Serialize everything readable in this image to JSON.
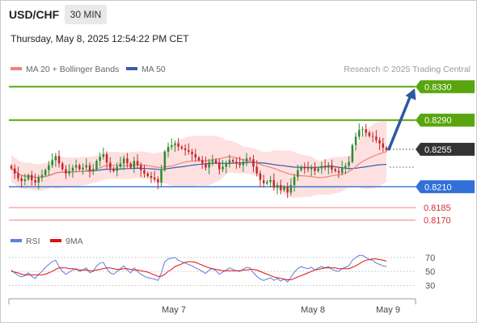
{
  "header": {
    "symbol": "USD/CHF",
    "timeframe": "30 MIN",
    "datetime": "Thursday, May 8, 2025 12:54:22 PM CET"
  },
  "legend": {
    "ma20_label": "MA 20 + Bollinger Bands",
    "ma50_label": "MA 50",
    "credit": "Research © 2025 Trading Central",
    "rsi_label": "RSI",
    "ma9_label": "9MA"
  },
  "colors": {
    "up": "#2e8b2e",
    "down": "#c62828",
    "ma20": "#f08080",
    "ma50": "#3a5ea8",
    "band": "#fde0e0",
    "resistance": "#5aa50f",
    "support": "#3070d8",
    "support_minor": "#f08080",
    "current": "#333333",
    "arrow": "#2c5aa0",
    "rsi": "#5b7fd8",
    "rsi_ma": "#e01010"
  },
  "chart_data": {
    "type": "candlestick",
    "y_range": [
      0.8158,
      0.8342
    ],
    "x_ticks": [
      "May 7",
      "May 8",
      "May 9"
    ],
    "levels": [
      {
        "label": "0.8330",
        "value": 0.833,
        "kind": "resistance"
      },
      {
        "label": "0.8290",
        "value": 0.829,
        "kind": "resistance"
      },
      {
        "label": "0.8255",
        "value": 0.8255,
        "kind": "current"
      },
      {
        "label": "0.8210",
        "value": 0.821,
        "kind": "support"
      },
      {
        "label": "0.8185",
        "value": 0.8185,
        "kind": "support-minor"
      },
      {
        "label": "0.8170",
        "value": 0.817,
        "kind": "support-minor"
      }
    ],
    "closes": [
      0.8232,
      0.8226,
      0.822,
      0.8217,
      0.8219,
      0.8224,
      0.8218,
      0.8215,
      0.8221,
      0.8224,
      0.823,
      0.8236,
      0.8242,
      0.8247,
      0.8238,
      0.8231,
      0.8226,
      0.8229,
      0.8233,
      0.8236,
      0.8231,
      0.8233,
      0.8236,
      0.8229,
      0.8231,
      0.8241,
      0.8246,
      0.8249,
      0.8239,
      0.8232,
      0.8229,
      0.8234,
      0.8238,
      0.8244,
      0.8238,
      0.8233,
      0.8241,
      0.8236,
      0.823,
      0.8226,
      0.8223,
      0.8221,
      0.8219,
      0.8215,
      0.823,
      0.8252,
      0.8258,
      0.826,
      0.8262,
      0.8258,
      0.8256,
      0.8254,
      0.8252,
      0.8249,
      0.8245,
      0.8242,
      0.8238,
      0.8233,
      0.824,
      0.8242,
      0.8239,
      0.8231,
      0.8234,
      0.8238,
      0.8242,
      0.824,
      0.8238,
      0.8236,
      0.824,
      0.8244,
      0.8243,
      0.8234,
      0.8226,
      0.8218,
      0.8214,
      0.8216,
      0.8218,
      0.8209,
      0.8212,
      0.8206,
      0.821,
      0.8203,
      0.8212,
      0.8222,
      0.823,
      0.8234,
      0.8232,
      0.8231,
      0.8233,
      0.8229,
      0.8232,
      0.8235,
      0.8233,
      0.8236,
      0.8231,
      0.8229,
      0.8227,
      0.8233,
      0.8235,
      0.824,
      0.826,
      0.827,
      0.8278,
      0.8279,
      0.8275,
      0.8271,
      0.827,
      0.8266,
      0.8262,
      0.8257,
      0.8254
    ],
    "projection": {
      "from": 0.8255,
      "to": 0.833,
      "label": "0.8330"
    },
    "rsi": {
      "y_ticks": [
        70,
        50,
        30
      ],
      "y_range": [
        20,
        78
      ],
      "values": [
        52,
        48,
        44,
        42,
        44,
        48,
        43,
        40,
        46,
        50,
        56,
        60,
        64,
        66,
        57,
        50,
        46,
        49,
        52,
        54,
        50,
        52,
        55,
        48,
        50,
        58,
        62,
        63,
        54,
        48,
        46,
        50,
        54,
        58,
        52,
        48,
        55,
        50,
        46,
        43,
        41,
        40,
        39,
        37,
        48,
        64,
        68,
        69,
        70,
        66,
        64,
        62,
        60,
        58,
        55,
        53,
        50,
        47,
        52,
        54,
        51,
        46,
        49,
        52,
        55,
        53,
        51,
        50,
        53,
        56,
        55,
        48,
        43,
        39,
        37,
        39,
        41,
        37,
        40,
        36,
        39,
        35,
        42,
        49,
        54,
        57,
        55,
        54,
        56,
        52,
        55,
        57,
        55,
        57,
        53,
        51,
        50,
        54,
        56,
        58,
        66,
        70,
        73,
        73,
        70,
        67,
        66,
        62,
        60,
        58,
        57
      ],
      "ma": [
        50,
        49,
        48,
        46,
        45,
        45,
        45,
        45,
        45,
        45,
        46,
        48,
        50,
        53,
        55,
        55,
        55,
        54,
        54,
        53,
        52,
        52,
        52,
        51,
        51,
        52,
        53,
        54,
        55,
        55,
        54,
        53,
        53,
        54,
        54,
        53,
        52,
        52,
        51,
        50,
        49,
        47,
        45,
        43,
        43,
        46,
        50,
        53,
        57,
        59,
        61,
        63,
        64,
        64,
        63,
        61,
        59,
        57,
        55,
        54,
        53,
        52,
        51,
        51,
        51,
        51,
        51,
        51,
        52,
        52,
        53,
        53,
        52,
        50,
        48,
        46,
        44,
        42,
        41,
        40,
        39,
        38,
        38,
        40,
        42,
        44,
        46,
        48,
        50,
        52,
        53,
        54,
        55,
        55,
        55,
        55,
        54,
        54,
        54,
        54,
        56,
        58,
        61,
        64,
        66,
        67,
        68,
        68,
        67,
        66,
        65
      ]
    }
  }
}
